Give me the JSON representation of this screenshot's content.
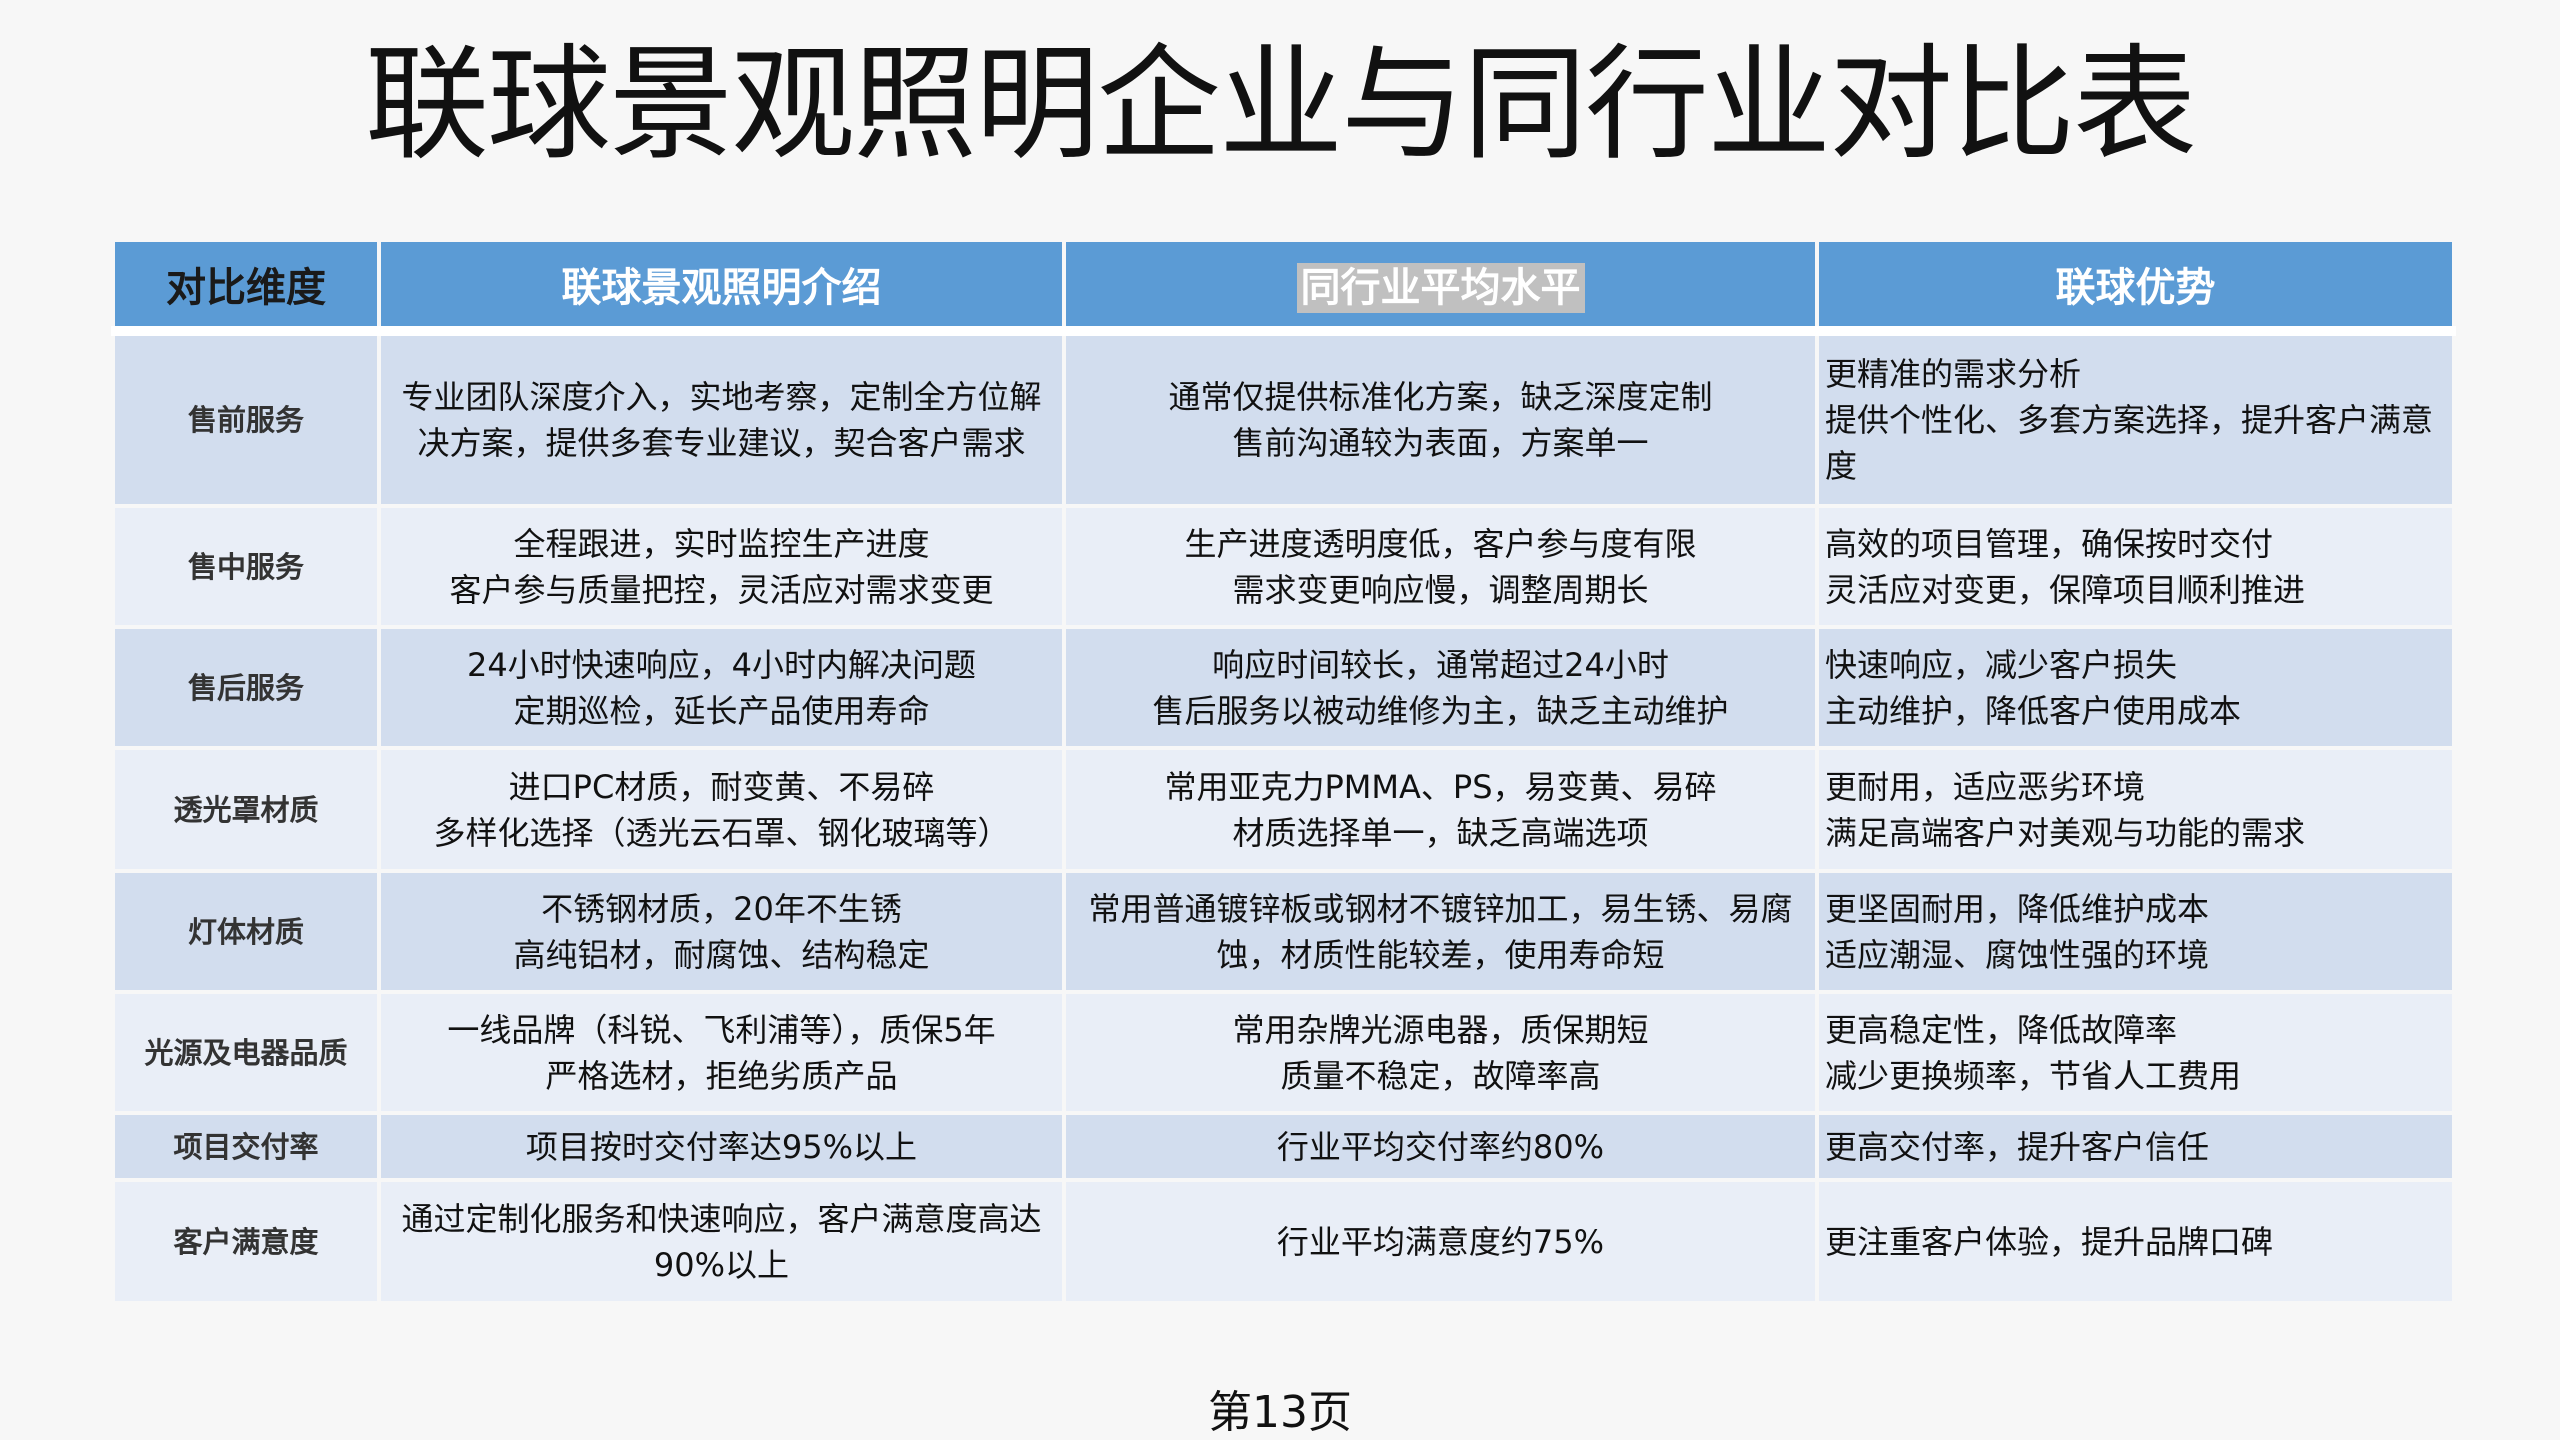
{
  "title": "联球景观照明企业与同行业对比表",
  "header": [
    "对比维度",
    "联球景观照明介绍",
    "同行业平均水平",
    "联球优势"
  ],
  "rows": [
    {
      "dimension": "售前服务",
      "intro": [
        "专业团队深度介入，实地考察，定制全方位解决方案，提供多套专业建议，契合客户需求"
      ],
      "industry": [
        "通常仅提供标准化方案，缺乏深度定制",
        "售前沟通较为表面，方案单一"
      ],
      "advantage": [
        "更精准的需求分析",
        "提供个性化、多套方案选择，提升客户满意度"
      ]
    },
    {
      "dimension": "售中服务",
      "intro": [
        "全程跟进，实时监控生产进度",
        "客户参与质量把控，灵活应对需求变更"
      ],
      "industry": [
        "生产进度透明度低，客户参与度有限",
        "需求变更响应慢，调整周期长"
      ],
      "advantage": [
        "高效的项目管理，确保按时交付",
        "灵活应对变更，保障项目顺利推进"
      ]
    },
    {
      "dimension": "售后服务",
      "intro": [
        "24小时快速响应，4小时内解决问题",
        "定期巡检，延长产品使用寿命"
      ],
      "industry": [
        "响应时间较长，通常超过24小时",
        "售后服务以被动维修为主，缺乏主动维护"
      ],
      "advantage": [
        "快速响应，减少客户损失",
        "主动维护，降低客户使用成本"
      ]
    },
    {
      "dimension": "透光罩材质",
      "intro": [
        "进口PC材质，耐变黄、不易碎",
        "多样化选择（透光云石罩、钢化玻璃等）"
      ],
      "industry": [
        "常用亚克力PMMA、PS，易变黄、易碎",
        "材质选择单一，缺乏高端选项"
      ],
      "advantage": [
        "更耐用，适应恶劣环境",
        "满足高端客户对美观与功能的需求"
      ]
    },
    {
      "dimension": "灯体材质",
      "intro": [
        "不锈钢材质，20年不生锈",
        "高纯铝材，耐腐蚀、结构稳定"
      ],
      "industry": [
        "常用普通镀锌板或钢材不镀锌加工，易生锈、易腐蚀，材质性能较差，使用寿命短"
      ],
      "advantage": [
        "更坚固耐用，降低维护成本",
        "适应潮湿、腐蚀性强的环境"
      ]
    },
    {
      "dimension": "光源及电器品质",
      "intro": [
        "一线品牌（科锐、飞利浦等），质保5年",
        "严格选材，拒绝劣质产品"
      ],
      "industry": [
        "常用杂牌光源电器，质保期短",
        "质量不稳定，故障率高"
      ],
      "advantage": [
        "更高稳定性，降低故障率",
        "减少更换频率，节省人工费用"
      ]
    },
    {
      "dimension": "项目交付率",
      "intro": [
        "项目按时交付率达95%以上"
      ],
      "industry": [
        "行业平均交付率约80%"
      ],
      "advantage": [
        "更高交付率，提升客户信任"
      ]
    },
    {
      "dimension": "客户满意度",
      "intro": [
        "通过定制化服务和快速响应，客户满意度高达90%以上"
      ],
      "industry": [
        "行业平均满意度约75%"
      ],
      "advantage": [
        "更注重客户体验，提升品牌口碑"
      ]
    }
  ],
  "footer": "第13页",
  "colors": {
    "header": "#5b9bd5",
    "row_odd": "#d2ddee",
    "row_even": "#e9eef7",
    "highlight": "#c0c0c0"
  }
}
